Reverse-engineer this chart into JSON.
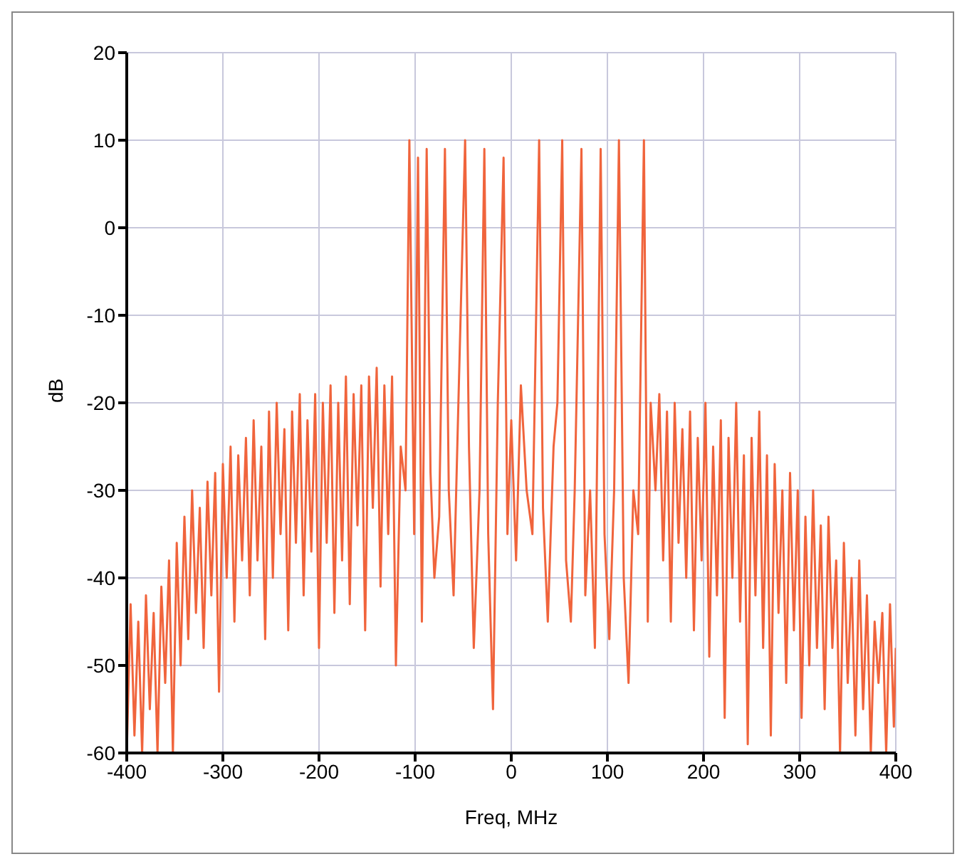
{
  "chart_data": {
    "type": "line",
    "xlabel": "Freq, MHz",
    "ylabel": "dB",
    "xlim": [
      -400,
      400
    ],
    "xticks": [
      -400,
      -300,
      -200,
      -100,
      0,
      100,
      200,
      300,
      400
    ],
    "ylim": [
      -60,
      20
    ],
    "yticks": [
      -60,
      -50,
      -40,
      -30,
      -20,
      -10,
      0,
      10,
      20
    ],
    "grid": true,
    "marker": "none",
    "line_style": "solid",
    "x": [
      -400,
      -396,
      -392,
      -388,
      -384,
      -380,
      -376,
      -372,
      -368,
      -364,
      -360,
      -356,
      -352,
      -348,
      -344,
      -340,
      -336,
      -332,
      -328,
      -324,
      -320,
      -316,
      -312,
      -308,
      -304,
      -300,
      -296,
      -292,
      -288,
      -284,
      -280,
      -276,
      -272,
      -268,
      -264,
      -260,
      -256,
      -252,
      -248,
      -244,
      -240,
      -236,
      -232,
      -228,
      -224,
      -220,
      -216,
      -212,
      -208,
      -204,
      -200,
      -196,
      -192,
      -188,
      -184,
      -180,
      -176,
      -172,
      -168,
      -164,
      -160,
      -156,
      -152,
      -148,
      -144,
      -140,
      -136,
      -132,
      -128,
      -124,
      -120,
      -115,
      -110,
      -106,
      -101,
      -97,
      -93,
      -88,
      -84,
      -80,
      -75,
      -69,
      -65,
      -60,
      -55,
      -48,
      -44,
      -39,
      -33,
      -28,
      -24,
      -19,
      -14,
      -8,
      -4,
      0,
      5,
      10,
      16,
      22,
      29,
      33,
      38,
      44,
      48,
      53,
      57,
      62,
      66,
      73,
      77,
      82,
      87,
      93,
      97,
      102,
      107,
      112,
      117,
      122,
      127,
      132,
      138,
      142,
      145,
      150,
      154,
      158,
      162,
      166,
      170,
      174,
      178,
      182,
      186,
      190,
      194,
      198,
      202,
      206,
      210,
      214,
      218,
      222,
      226,
      230,
      234,
      238,
      242,
      246,
      250,
      254,
      258,
      262,
      266,
      270,
      274,
      278,
      282,
      286,
      290,
      294,
      298,
      302,
      306,
      310,
      314,
      318,
      322,
      326,
      330,
      334,
      338,
      342,
      346,
      350,
      354,
      358,
      362,
      366,
      370,
      374,
      378,
      382,
      386,
      390,
      394,
      398,
      400
    ],
    "series": [
      {
        "color": "#f0643c",
        "values": [
          -60,
          -43,
          -58,
          -45,
          -60,
          -42,
          -55,
          -44,
          -60,
          -41,
          -52,
          -38,
          -60,
          -36,
          -50,
          -33,
          -47,
          -30,
          -44,
          -32,
          -48,
          -29,
          -42,
          -28,
          -53,
          -27,
          -40,
          -25,
          -45,
          -26,
          -38,
          -24,
          -42,
          -22,
          -38,
          -25,
          -47,
          -21,
          -40,
          -20,
          -35,
          -23,
          -46,
          -21,
          -36,
          -19,
          -42,
          -22,
          -37,
          -19,
          -48,
          -20,
          -36,
          -18,
          -44,
          -20,
          -38,
          -17,
          -43,
          -19,
          -34,
          -18,
          -46,
          -17,
          -32,
          -16,
          -41,
          -18,
          -35,
          -17,
          -50,
          -25,
          -30,
          10,
          -35,
          8,
          -45,
          9,
          -28,
          -40,
          -33,
          9,
          -30,
          -42,
          -20,
          10,
          -25,
          -48,
          -30,
          9,
          -35,
          -55,
          -20,
          8,
          -35,
          -22,
          -38,
          -18,
          -30,
          -35,
          10,
          -32,
          -45,
          -25,
          -20,
          10,
          -38,
          -45,
          -30,
          9,
          -42,
          -30,
          -48,
          9,
          -35,
          -47,
          -30,
          10,
          -40,
          -52,
          -30,
          -35,
          10,
          -45,
          -20,
          -30,
          -19,
          -38,
          -21,
          -45,
          -20,
          -36,
          -23,
          -40,
          -21,
          -46,
          -24,
          -38,
          -20,
          -49,
          -25,
          -42,
          -22,
          -56,
          -24,
          -40,
          -20,
          -45,
          -26,
          -59,
          -24,
          -42,
          -21,
          -48,
          -26,
          -58,
          -27,
          -44,
          -30,
          -52,
          -28,
          -46,
          -30,
          -56,
          -33,
          -50,
          -30,
          -48,
          -34,
          -55,
          -33,
          -48,
          -38,
          -60,
          -36,
          -52,
          -40,
          -58,
          -38,
          -55,
          -42,
          -60,
          -45,
          -52,
          -44,
          -60,
          -43,
          -57,
          -48
        ]
      }
    ]
  }
}
